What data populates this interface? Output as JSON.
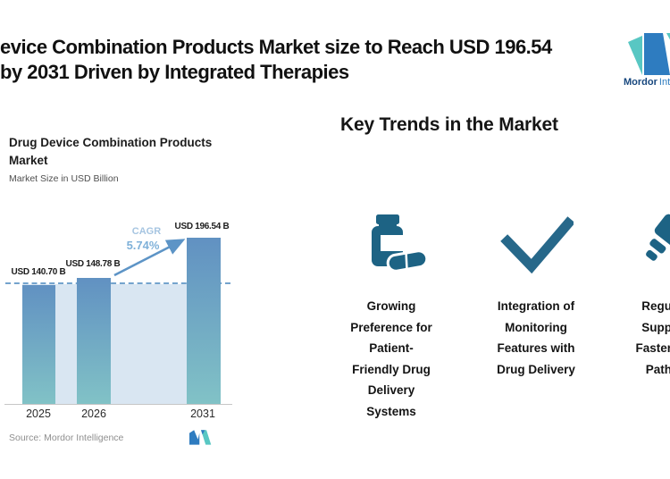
{
  "colors": {
    "accent_teal": "#58c7c3",
    "accent_blue": "#2e7cc0",
    "brand_navy": "#17477e",
    "icon_dark": "#1d6384",
    "bar_gradient_top": "#6191c2",
    "bar_gradient_bottom": "#81c2c6",
    "band_fill": "#d9e6f2",
    "dashed_baseline": "#74a3cd",
    "growth_arrow": "#5d94c6",
    "cagr_label_color": "#a6c5e1",
    "cagr_value_color": "#7fb1d9"
  },
  "header": {
    "title_line1": "evice Combination Products Market size to Reach USD 196.54",
    "title_line2": "by 2031 Driven by Integrated Therapies",
    "logo": {
      "brand_bold": "Mordor",
      "brand_rest": "Int"
    }
  },
  "chart": {
    "title_line1": "Drug Device Combination Products",
    "title_line2": "Market",
    "subtitle": "Market Size in USD Billion",
    "cagr_label": "CAGR",
    "cagr_value": "5.74%",
    "source": "Source: Mordor Intelligence"
  },
  "chart_data": {
    "type": "bar",
    "title": "Drug Device Combination Products Market",
    "ylabel": "Market Size in USD Billion",
    "unit": "USD Billion",
    "categories": [
      "2025",
      "2026",
      "2031"
    ],
    "values": [
      140.7,
      148.78,
      196.54
    ],
    "value_labels": [
      "USD 140.70 B",
      "USD 148.78 B",
      "USD 196.54 B"
    ],
    "ylim": [
      0,
      196.54
    ],
    "grid": false,
    "legend": false,
    "annotations": [
      {
        "type": "growth-arrow",
        "text": "CAGR 5.74%",
        "from": "2026",
        "to": "2031"
      },
      {
        "type": "dashed-baseline",
        "at_value": 140.7
      }
    ]
  },
  "trends": {
    "heading": "Key Trends in the Market",
    "items": [
      {
        "icon": "pill-bottle-icon",
        "text": "Growing\nPreference for\nPatient-\nFriendly Drug\nDelivery\nSystems"
      },
      {
        "icon": "checkmark-icon",
        "text": "Integration of\nMonitoring\nFeatures with\nDrug Delivery"
      },
      {
        "icon": "approval-stamp-icon",
        "truncated_at_right_edge": true,
        "text": "Regu\nSupp\nFaster\nPath"
      }
    ]
  }
}
